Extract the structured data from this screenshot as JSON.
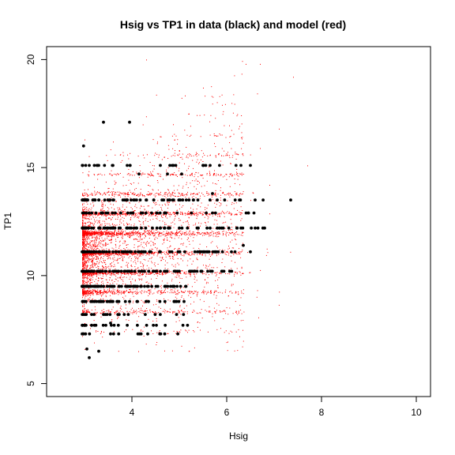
{
  "chart_data": {
    "type": "scatter",
    "title": "Hsig vs TP1 in data (black) and model (red)",
    "xlabel": "Hsig",
    "ylabel": "TP1",
    "xlim": [
      2.2,
      10.3
    ],
    "ylim": [
      4.4,
      20.6
    ],
    "xticks": [
      4,
      6,
      8,
      10
    ],
    "yticks": [
      5,
      10,
      15,
      20
    ],
    "grid": false,
    "legend": "none",
    "colors": {
      "model": "#ff0000",
      "data": "#000000"
    },
    "series": [
      {
        "name": "model",
        "color": "#ff0000",
        "marker": "dot-small",
        "points": [
          [
            2.95,
            7.2
          ],
          [
            3.0,
            7.8
          ],
          [
            3.05,
            8.3
          ],
          [
            3.1,
            8.9
          ],
          [
            3.0,
            9.4
          ],
          [
            3.15,
            10.1
          ],
          [
            3.2,
            10.6
          ],
          [
            3.05,
            11.2
          ],
          [
            3.25,
            11.7
          ],
          [
            3.1,
            12.3
          ],
          [
            3.3,
            12.9
          ],
          [
            3.0,
            13.6
          ],
          [
            3.2,
            14.1
          ],
          [
            3.35,
            9.6
          ],
          [
            3.4,
            10.4
          ],
          [
            3.45,
            11.0
          ],
          [
            3.5,
            11.9
          ],
          [
            3.55,
            12.6
          ],
          [
            3.6,
            13.3
          ],
          [
            3.7,
            8.7
          ],
          [
            3.75,
            9.9
          ],
          [
            3.8,
            10.8
          ],
          [
            3.85,
            11.6
          ],
          [
            3.9,
            12.4
          ],
          [
            4.0,
            13.1
          ],
          [
            4.05,
            14.0
          ],
          [
            4.1,
            9.2
          ],
          [
            4.2,
            10.3
          ],
          [
            4.3,
            11.4
          ],
          [
            4.4,
            12.1
          ],
          [
            4.5,
            13.4
          ],
          [
            4.6,
            14.6
          ],
          [
            4.7,
            10.7
          ],
          [
            4.8,
            11.8
          ],
          [
            4.9,
            12.9
          ],
          [
            5.0,
            9.7
          ],
          [
            5.1,
            11.1
          ],
          [
            5.2,
            12.2
          ],
          [
            5.3,
            13.8
          ],
          [
            5.4,
            15.2
          ],
          [
            5.5,
            10.5
          ],
          [
            5.6,
            12.5
          ],
          [
            5.7,
            14.3
          ],
          [
            5.8,
            11.3
          ],
          [
            5.9,
            13.0
          ],
          [
            6.0,
            15.6
          ],
          [
            6.1,
            12.0
          ],
          [
            6.2,
            14.8
          ],
          [
            6.3,
            16.4
          ],
          [
            6.5,
            13.5
          ],
          [
            6.7,
            15.9
          ],
          [
            6.9,
            14.2
          ],
          [
            7.1,
            16.8
          ],
          [
            7.4,
            19.2
          ],
          [
            7.7,
            15.1
          ],
          [
            4.3,
            20.0
          ],
          [
            5.5,
            18.7
          ],
          [
            6.4,
            19.8
          ],
          [
            6.7,
            19.8
          ],
          [
            3.0,
            6.6
          ],
          [
            3.2,
            6.9
          ],
          [
            3.4,
            7.4
          ],
          [
            3.6,
            7.7
          ],
          [
            3.9,
            8.2
          ],
          [
            4.6,
            8.5
          ],
          [
            5.3,
            8.8
          ],
          [
            5.2,
            17.5
          ],
          [
            5.9,
            17.9
          ],
          [
            4.9,
            16.3
          ],
          [
            3.9,
            15.6
          ],
          [
            3.6,
            16.2
          ],
          [
            3.0,
            16.3
          ]
        ]
      },
      {
        "name": "data",
        "color": "#000000",
        "marker": "dot-large",
        "points": [
          [
            2.98,
            16.0
          ],
          [
            3.05,
            6.6
          ],
          [
            3.1,
            6.2
          ],
          [
            3.3,
            6.5
          ],
          [
            2.97,
            7.3
          ],
          [
            3.0,
            7.7
          ],
          [
            3.15,
            7.7
          ],
          [
            3.45,
            7.7
          ],
          [
            3.0,
            8.2
          ],
          [
            3.2,
            8.2
          ],
          [
            3.4,
            8.2
          ],
          [
            3.0,
            8.8
          ],
          [
            3.3,
            8.8
          ],
          [
            3.6,
            8.8
          ],
          [
            3.95,
            8.8
          ],
          [
            4.35,
            8.8
          ],
          [
            5.1,
            8.8
          ],
          [
            3.0,
            9.5
          ],
          [
            3.3,
            9.5
          ],
          [
            3.6,
            9.5
          ],
          [
            3.9,
            9.5
          ],
          [
            4.2,
            9.5
          ],
          [
            4.7,
            9.5
          ],
          [
            3.0,
            10.2
          ],
          [
            3.3,
            10.2
          ],
          [
            3.6,
            10.2
          ],
          [
            3.9,
            10.2
          ],
          [
            4.2,
            10.2
          ],
          [
            4.6,
            10.2
          ],
          [
            5.0,
            10.2
          ],
          [
            5.6,
            10.2
          ],
          [
            5.9,
            10.2
          ],
          [
            3.0,
            11.1
          ],
          [
            3.3,
            11.1
          ],
          [
            3.6,
            11.1
          ],
          [
            3.9,
            11.1
          ],
          [
            4.2,
            11.1
          ],
          [
            4.6,
            11.1
          ],
          [
            5.0,
            11.1
          ],
          [
            5.5,
            11.1
          ],
          [
            6.1,
            11.1
          ],
          [
            6.5,
            11.1
          ],
          [
            3.0,
            12.2
          ],
          [
            3.3,
            12.2
          ],
          [
            3.6,
            12.2
          ],
          [
            3.9,
            12.2
          ],
          [
            4.2,
            12.2
          ],
          [
            4.6,
            12.2
          ],
          [
            5.0,
            12.2
          ],
          [
            5.4,
            12.2
          ],
          [
            5.8,
            12.2
          ],
          [
            6.3,
            12.2
          ],
          [
            6.6,
            12.2
          ],
          [
            6.8,
            12.2
          ],
          [
            3.0,
            13.5
          ],
          [
            3.3,
            13.5
          ],
          [
            3.6,
            13.5
          ],
          [
            3.9,
            13.5
          ],
          [
            4.3,
            13.5
          ],
          [
            4.8,
            13.5
          ],
          [
            5.3,
            13.5
          ],
          [
            5.8,
            13.5
          ],
          [
            6.6,
            13.5
          ],
          [
            7.35,
            13.5
          ],
          [
            3.1,
            15.1
          ],
          [
            3.3,
            15.1
          ],
          [
            3.6,
            15.1
          ],
          [
            3.9,
            15.1
          ],
          [
            4.6,
            15.1
          ],
          [
            4.8,
            15.1
          ],
          [
            5.5,
            15.1
          ],
          [
            6.3,
            15.1
          ],
          [
            6.5,
            15.1
          ],
          [
            3.4,
            17.1
          ],
          [
            3.95,
            17.1
          ],
          [
            5.7,
            13.8
          ],
          [
            4.0,
            12.9
          ],
          [
            4.15,
            14.7
          ],
          [
            4.75,
            14.7
          ],
          [
            5.05,
            14.7
          ],
          [
            6.35,
            11.4
          ],
          [
            3.55,
            7.8
          ]
        ]
      }
    ]
  }
}
